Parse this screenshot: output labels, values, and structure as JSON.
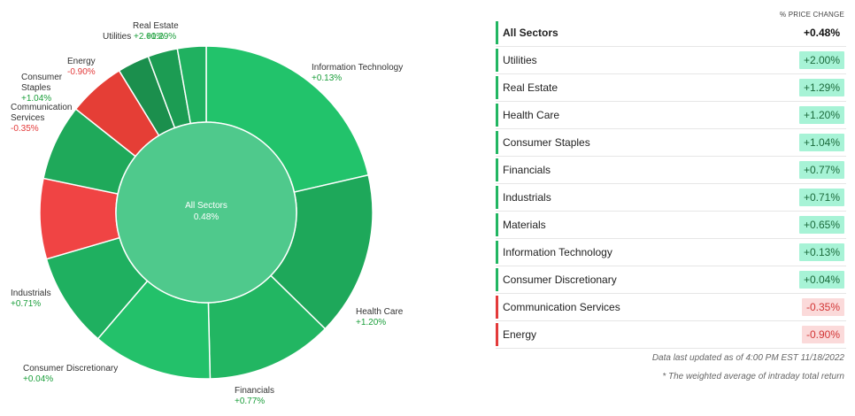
{
  "chart_data": {
    "type": "pie",
    "center_label": "All Sectors",
    "center_value": "0.48%",
    "slices": [
      {
        "name": "Information Technology",
        "change": "+0.13%",
        "weight": 20.0,
        "color": "#22c36b"
      },
      {
        "name": "Health Care",
        "change": "+1.20%",
        "weight": 14.9,
        "color": "#1ea85a"
      },
      {
        "name": "Financials",
        "change": "+0.77%",
        "weight": 11.5,
        "color": "#22b662"
      },
      {
        "name": "Consumer Discretionary",
        "change": "+0.04%",
        "weight": 10.9,
        "color": "#23c16a"
      },
      {
        "name": "Industrials",
        "change": "+0.71%",
        "weight": 8.6,
        "color": "#1fb060"
      },
      {
        "name": "Communication Services",
        "change": "-0.35%",
        "weight": 7.3,
        "color": "#f04444"
      },
      {
        "name": "Consumer Staples",
        "change": "+1.04%",
        "weight": 6.9,
        "color": "#1fa95a"
      },
      {
        "name": "Energy",
        "change": "-0.90%",
        "weight": 5.2,
        "color": "#e53e36"
      },
      {
        "name": "Utilities",
        "change": "+2.00%",
        "weight": 2.9,
        "color": "#1b8f4d"
      },
      {
        "name": "Real Estate",
        "change": "+1.29%",
        "weight": 2.7,
        "color": "#1c9c53"
      },
      {
        "name": "Materials",
        "change": "+0.65%",
        "weight": 2.6,
        "color": "#20b160"
      }
    ],
    "inner_color": "#4fc98c"
  },
  "table": {
    "column_header": "% PRICE CHANGE",
    "all_sectors": {
      "name": "All Sectors",
      "value": "+0.48%"
    },
    "rows": [
      {
        "name": "Utilities",
        "value": "+2.00%",
        "positive": true
      },
      {
        "name": "Real Estate",
        "value": "+1.29%",
        "positive": true
      },
      {
        "name": "Health Care",
        "value": "+1.20%",
        "positive": true
      },
      {
        "name": "Consumer Staples",
        "value": "+1.04%",
        "positive": true
      },
      {
        "name": "Financials",
        "value": "+0.77%",
        "positive": true
      },
      {
        "name": "Industrials",
        "value": "+0.71%",
        "positive": true
      },
      {
        "name": "Materials",
        "value": "+0.65%",
        "positive": true
      },
      {
        "name": "Information Technology",
        "value": "+0.13%",
        "positive": true
      },
      {
        "name": "Consumer Discretionary",
        "value": "+0.04%",
        "positive": true
      },
      {
        "name": "Communication Services",
        "value": "-0.35%",
        "positive": false
      },
      {
        "name": "Energy",
        "value": "-0.90%",
        "positive": false
      }
    ],
    "bar_positive_color": "#22b662",
    "bar_negative_color": "#e33a3a"
  },
  "footnotes": {
    "updated": "Data last updated as of 4:00 PM EST 11/18/2022",
    "weighted": "* The weighted average of intraday total return"
  }
}
